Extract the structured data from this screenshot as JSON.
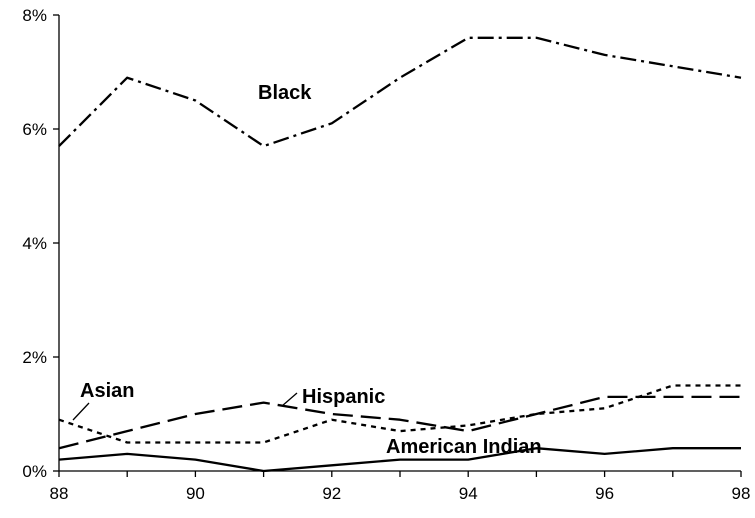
{
  "chart_data": {
    "type": "line",
    "x": [
      88,
      89,
      90,
      91,
      92,
      93,
      94,
      95,
      96,
      97,
      98
    ],
    "xlim": [
      88,
      98
    ],
    "ylim": [
      0,
      8
    ],
    "x_ticks": [
      "88",
      "90",
      "92",
      "94",
      "96",
      "98"
    ],
    "y_ticks": [
      "0%",
      "2%",
      "4%",
      "6%",
      "8%"
    ],
    "grid": false,
    "legend": "none (direct labels)",
    "series": [
      {
        "name": "Black",
        "dash": "dash-dot",
        "values": [
          5.7,
          6.9,
          6.5,
          5.7,
          6.1,
          6.9,
          7.6,
          7.6,
          7.3,
          7.1,
          6.9
        ]
      },
      {
        "name": "Hispanic",
        "dash": "long-dash",
        "values": [
          0.4,
          0.7,
          1.0,
          1.2,
          1.0,
          0.9,
          0.7,
          1.0,
          1.3,
          1.3,
          1.3
        ]
      },
      {
        "name": "Asian",
        "dash": "dotted",
        "values": [
          0.9,
          0.5,
          0.5,
          0.5,
          0.9,
          0.7,
          0.8,
          1.0,
          1.1,
          1.5,
          1.5
        ]
      },
      {
        "name": "American Indian",
        "dash": "solid",
        "values": [
          0.2,
          0.3,
          0.2,
          0.0,
          0.1,
          0.2,
          0.2,
          0.4,
          0.3,
          0.4,
          0.4
        ]
      }
    ]
  }
}
